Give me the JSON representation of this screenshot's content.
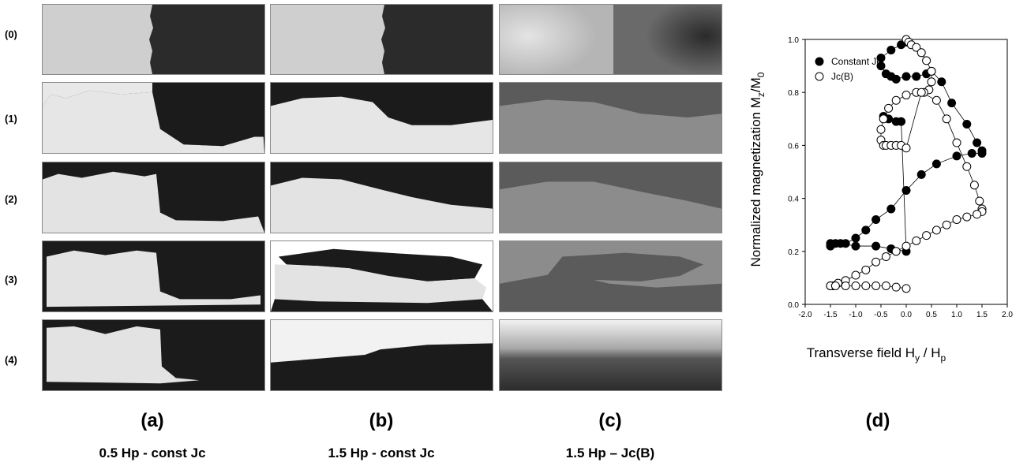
{
  "rows": [
    "(0)",
    "(1)",
    "(2)",
    "(3)",
    "(4)"
  ],
  "columns": [
    {
      "letter": "(a)",
      "caption": "0.5 Hp - const Jc"
    },
    {
      "letter": "(b)",
      "caption": "1.5 Hp - const Jc"
    },
    {
      "letter": "(c)",
      "caption": "1.5 Hp – Jc(B)"
    }
  ],
  "panel_d_letter": "(d)",
  "colors": {
    "light": "#d9d9d9",
    "dark": "#1c1c1c",
    "mid_dark": "#5a5a5a",
    "mid_light": "#8a8a8a",
    "frame": "#8a8a8a"
  },
  "chart_data": {
    "type": "scatter",
    "xlabel": "Transverse field H_y / H_p",
    "xlabel_main": "Transverse field H",
    "xlabel_sub1": "y",
    "xlabel_mid": " / H",
    "xlabel_sub2": "p",
    "ylabel": "Normalized magnetization M_z/M_0",
    "ylabel_main": "Normalized magnetization M",
    "ylabel_sub1": "z",
    "ylabel_mid": "/M",
    "ylabel_sub2": "0",
    "xlim": [
      -2.0,
      2.0
    ],
    "ylim": [
      0.0,
      1.0
    ],
    "xticks": [
      "-2.0",
      "-1.5",
      "-1.0",
      "-0.5",
      "0.0",
      "0.5",
      "1.0",
      "1.5",
      "2.0"
    ],
    "yticks": [
      "0.0",
      "0.2",
      "0.4",
      "0.6",
      "0.8",
      "1.0"
    ],
    "legend_position": "top-left",
    "series": [
      {
        "name": "Constant Jc",
        "marker": "filled-circle",
        "x": [
          0.0,
          -0.1,
          -0.3,
          -0.5,
          -0.5,
          -0.4,
          -0.3,
          -0.2,
          0.0,
          0.2,
          0.4,
          0.5,
          0.7,
          0.9,
          1.2,
          1.4,
          1.5,
          1.5,
          1.3,
          1.0,
          0.6,
          0.3,
          0.0,
          -0.3,
          -0.6,
          -0.8,
          -1.0,
          -1.2,
          -1.4,
          -1.5,
          -1.5,
          -1.3,
          -1.0,
          -0.6,
          -0.3,
          0.0,
          -0.1,
          -0.2,
          -0.35,
          -0.45
        ],
        "y": [
          0.99,
          0.98,
          0.96,
          0.93,
          0.9,
          0.87,
          0.86,
          0.85,
          0.86,
          0.86,
          0.87,
          0.88,
          0.84,
          0.76,
          0.68,
          0.61,
          0.58,
          0.57,
          0.57,
          0.56,
          0.53,
          0.49,
          0.43,
          0.36,
          0.32,
          0.28,
          0.25,
          0.23,
          0.23,
          0.22,
          0.23,
          0.23,
          0.22,
          0.22,
          0.21,
          0.2,
          0.69,
          0.69,
          0.7,
          0.71
        ]
      },
      {
        "name": "Jc(B)",
        "marker": "open-circle",
        "x": [
          0.0,
          0.05,
          0.1,
          0.2,
          0.3,
          0.4,
          0.5,
          0.5,
          0.45,
          0.35,
          0.2,
          0.0,
          -0.2,
          -0.35,
          -0.45,
          -0.5,
          -0.5,
          -0.45,
          -0.4,
          -0.3,
          -0.2,
          -0.1,
          0.0,
          0.3,
          0.6,
          0.8,
          1.0,
          1.2,
          1.35,
          1.45,
          1.5,
          1.5,
          1.4,
          1.2,
          1.0,
          0.8,
          0.6,
          0.4,
          0.2,
          0.0,
          -0.2,
          -0.4,
          -0.6,
          -0.8,
          -1.0,
          -1.2,
          -1.35,
          -1.45,
          -1.5,
          -1.5,
          -1.4,
          -1.2,
          -1.0,
          -0.8,
          -0.6,
          -0.4,
          -0.2,
          0.0
        ],
        "y": [
          1.0,
          0.99,
          0.98,
          0.97,
          0.95,
          0.92,
          0.88,
          0.84,
          0.81,
          0.8,
          0.8,
          0.79,
          0.77,
          0.74,
          0.7,
          0.66,
          0.62,
          0.6,
          0.6,
          0.6,
          0.6,
          0.6,
          0.59,
          0.8,
          0.77,
          0.7,
          0.61,
          0.52,
          0.45,
          0.39,
          0.36,
          0.35,
          0.34,
          0.33,
          0.32,
          0.3,
          0.28,
          0.26,
          0.24,
          0.22,
          0.2,
          0.18,
          0.16,
          0.13,
          0.11,
          0.09,
          0.08,
          0.07,
          0.07,
          0.07,
          0.07,
          0.07,
          0.07,
          0.07,
          0.07,
          0.07,
          0.065,
          0.06
        ]
      }
    ]
  }
}
